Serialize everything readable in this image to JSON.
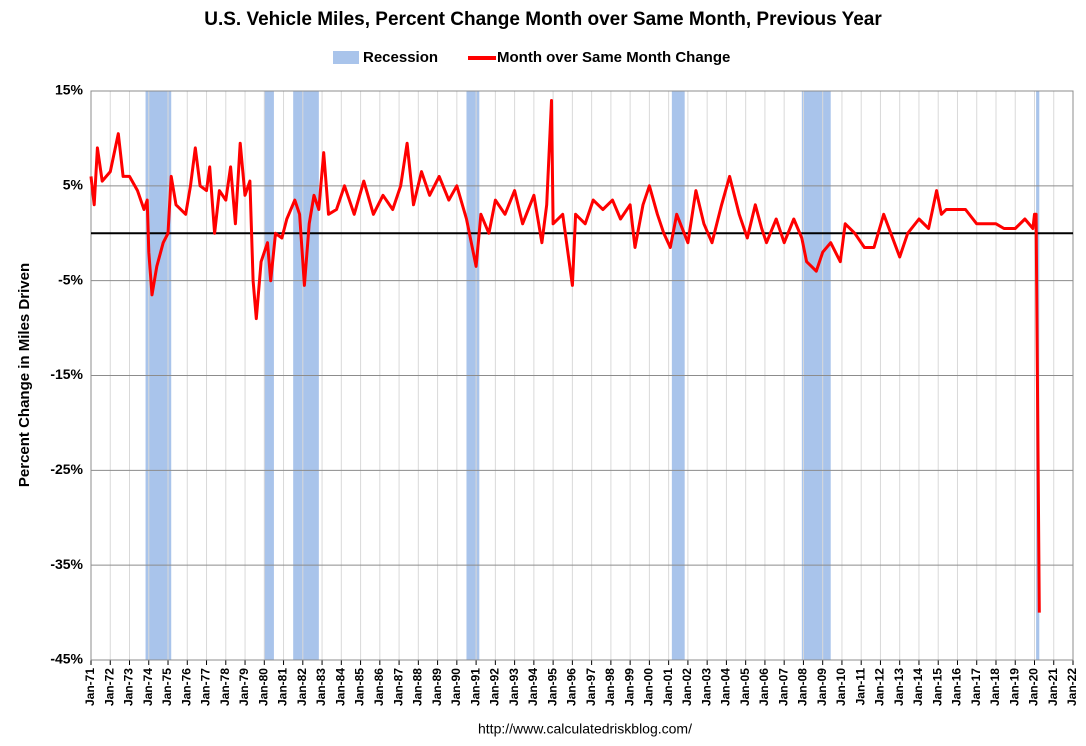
{
  "chart_data": {
    "type": "line",
    "title": "U.S. Vehicle Miles,  Percent Change Month over Same Month, Previous Year",
    "y_label": "Percent Change in Miles Driven",
    "source": "http://www.calculatedriskblog.com/",
    "recession_name": "Recession",
    "recession_color": "#a9c4eb",
    "recessions": [
      {
        "start": "Nov-73",
        "end": "Mar-75"
      },
      {
        "start": "Jan-80",
        "end": "Jul-80"
      },
      {
        "start": "Jul-81",
        "end": "Nov-82"
      },
      {
        "start": "Jul-90",
        "end": "Mar-91"
      },
      {
        "start": "Mar-01",
        "end": "Nov-01"
      },
      {
        "start": "Dec-07",
        "end": "Jun-09"
      },
      {
        "start": "Feb-20",
        "end": "Apr-20"
      }
    ],
    "x": [
      "Jan-71",
      "Mar-71",
      "May-71",
      "Aug-71",
      "Jan-72",
      "Jun-72",
      "Sep-72",
      "Jan-73",
      "Jun-73",
      "Oct-73",
      "Dec-73",
      "Jan-74",
      "Mar-74",
      "Jun-74",
      "Oct-74",
      "Jan-75",
      "Mar-75",
      "Jun-75",
      "Dec-75",
      "Mar-76",
      "Jun-76",
      "Sep-76",
      "Jan-77",
      "Mar-77",
      "Jun-77",
      "Sep-77",
      "Jan-78",
      "Apr-78",
      "Jul-78",
      "Oct-78",
      "Jan-79",
      "Apr-79",
      "Jun-79",
      "Aug-79",
      "Nov-79",
      "Mar-80",
      "May-80",
      "Aug-80",
      "Dec-80",
      "Mar-81",
      "Aug-81",
      "Nov-81",
      "Feb-82",
      "May-82",
      "Aug-82",
      "Nov-82",
      "Feb-83",
      "May-83",
      "Oct-83",
      "Mar-84",
      "Sep-84",
      "Mar-85",
      "Sep-85",
      "Mar-86",
      "Sep-86",
      "Feb-87",
      "Jun-87",
      "Oct-87",
      "Mar-88",
      "Aug-88",
      "Feb-89",
      "Aug-89",
      "Jan-90",
      "Jul-90",
      "Jan-91",
      "Apr-91",
      "Sep-91",
      "Jan-92",
      "Jul-92",
      "Jan-93",
      "Jun-93",
      "Jan-94",
      "Jun-94",
      "Sep-94",
      "Dec-94",
      "Jan-95",
      "Jul-95",
      "Jan-96",
      "Mar-96",
      "Sep-96",
      "Feb-97",
      "Aug-97",
      "Feb-98",
      "Jul-98",
      "Jan-99",
      "Apr-99",
      "Sep-99",
      "Jan-00",
      "Jun-00",
      "Oct-00",
      "Feb-01",
      "Jun-01",
      "Jan-02",
      "Jun-02",
      "Nov-02",
      "Apr-03",
      "Oct-03",
      "Mar-04",
      "Sep-04",
      "Feb-05",
      "Jul-05",
      "Nov-05",
      "Feb-06",
      "Aug-06",
      "Jan-07",
      "Jul-07",
      "Dec-07",
      "Mar-08",
      "Jun-08",
      "Sep-08",
      "Jan-09",
      "Jun-09",
      "Dec-09",
      "Mar-10",
      "Sep-10",
      "Mar-11",
      "Sep-11",
      "Mar-12",
      "Jan-13",
      "Jun-13",
      "Jan-14",
      "Jul-14",
      "Dec-14",
      "Mar-15",
      "Jun-15",
      "Jan-16",
      "Jun-16",
      "Jan-17",
      "Jan-18",
      "Jun-18",
      "Jan-19",
      "Jul-19",
      "Dec-19",
      "Jan-20",
      "Feb-20",
      "Mar-20",
      "Apr-20"
    ],
    "series": [
      {
        "name": "Month over Same Month Change",
        "color": "#ff0000",
        "values": [
          6,
          3,
          9,
          5.5,
          6.5,
          10.5,
          6,
          6,
          4.5,
          2.5,
          3.5,
          -2,
          -6.5,
          -3.5,
          -1,
          0,
          6,
          3,
          2,
          5,
          9,
          5,
          4.5,
          7,
          0,
          4.5,
          3.5,
          7,
          1,
          9.5,
          4,
          5.5,
          -5,
          -9,
          -3,
          -1,
          -5,
          0,
          -0.5,
          1.5,
          3.5,
          2,
          -5.5,
          1,
          4,
          2.5,
          8.5,
          2,
          2.5,
          5,
          2,
          5.5,
          2,
          4,
          2.5,
          5,
          9.5,
          3,
          6.5,
          4,
          6,
          3.5,
          5,
          1.5,
          -3.5,
          2,
          0,
          3.5,
          2,
          4.5,
          1,
          4,
          -1,
          3,
          14,
          1,
          2,
          -5.5,
          2,
          1,
          3.5,
          2.5,
          3.5,
          1.5,
          3,
          -1.5,
          3,
          5,
          2,
          0,
          -1.5,
          2,
          -1,
          4.5,
          1,
          -1,
          3,
          6,
          2,
          -0.5,
          3,
          0.5,
          -1,
          1.5,
          -1,
          1.5,
          -0.5,
          -3,
          -3.5,
          -4,
          -2,
          -1,
          -3,
          1,
          0,
          -1.5,
          -1.5,
          2,
          -2.5,
          0,
          1.5,
          0.5,
          4.5,
          2,
          2.5,
          2.5,
          2.5,
          1,
          1,
          0.5,
          0.5,
          1.5,
          0.5,
          2,
          2,
          -19,
          -40
        ]
      }
    ],
    "xlim": [
      "Jan-71",
      "Jan-22"
    ],
    "xticks": [
      "Jan-71",
      "Jan-72",
      "Jan-73",
      "Jan-74",
      "Jan-75",
      "Jan-76",
      "Jan-77",
      "Jan-78",
      "Jan-79",
      "Jan-80",
      "Jan-81",
      "Jan-82",
      "Jan-83",
      "Jan-84",
      "Jan-85",
      "Jan-86",
      "Jan-87",
      "Jan-88",
      "Jan-89",
      "Jan-90",
      "Jan-91",
      "Jan-92",
      "Jan-93",
      "Jan-94",
      "Jan-95",
      "Jan-96",
      "Jan-97",
      "Jan-98",
      "Jan-99",
      "Jan-00",
      "Jan-01",
      "Jan-02",
      "Jan-03",
      "Jan-04",
      "Jan-05",
      "Jan-06",
      "Jan-07",
      "Jan-08",
      "Jan-09",
      "Jan-10",
      "Jan-11",
      "Jan-12",
      "Jan-13",
      "Jan-14",
      "Jan-15",
      "Jan-16",
      "Jan-17",
      "Jan-18",
      "Jan-19",
      "Jan-20",
      "Jan-21",
      "Jan-22"
    ],
    "ylim": [
      -45,
      15
    ],
    "yticks": [
      {
        "value": 15,
        "label": "15%"
      },
      {
        "value": 5,
        "label": "5%"
      },
      {
        "value": -5,
        "label": "-5%"
      },
      {
        "value": -15,
        "label": "-15%"
      },
      {
        "value": -25,
        "label": "-25%"
      },
      {
        "value": -35,
        "label": "-35%"
      },
      {
        "value": -45,
        "label": "-45%"
      }
    ],
    "grid": true
  }
}
